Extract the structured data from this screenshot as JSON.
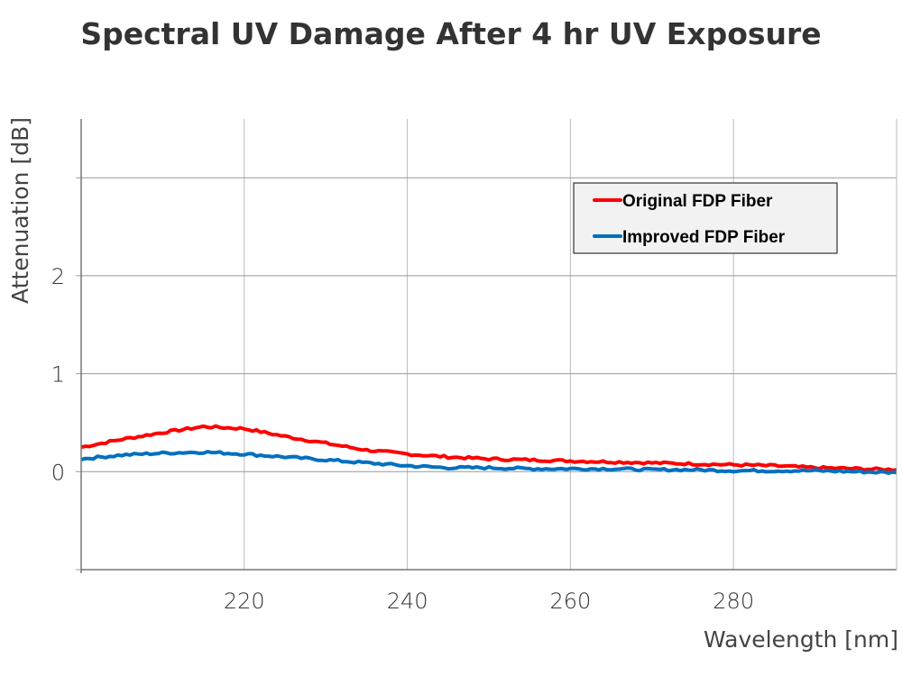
{
  "chart_data": {
    "type": "line",
    "title": "Spectral UV Damage After 4 hr UV Exposure",
    "xlabel": "Wavelength [nm]",
    "ylabel": "Attenuation [dB]",
    "xlim": [
      200,
      300
    ],
    "ylim": [
      -1,
      3.6
    ],
    "xticks": [
      220,
      240,
      260,
      280
    ],
    "xtick_labels": [
      "220",
      "240",
      "260",
      "280"
    ],
    "ygrid": [
      -1,
      0,
      1,
      2,
      3
    ],
    "yticks": [
      0,
      1,
      2
    ],
    "ytick_labels": [
      "0",
      "1",
      "2"
    ],
    "grid": true,
    "legend_position": "top-right",
    "x": [
      200,
      205,
      210,
      215,
      220,
      225,
      230,
      235,
      240,
      245,
      250,
      255,
      260,
      265,
      270,
      275,
      280,
      285,
      290,
      295,
      300
    ],
    "series": [
      {
        "name": "Original FDP Fiber",
        "color": "#ff0000",
        "values": [
          0.25,
          0.33,
          0.4,
          0.46,
          0.44,
          0.36,
          0.29,
          0.22,
          0.18,
          0.15,
          0.13,
          0.12,
          0.11,
          0.1,
          0.09,
          0.08,
          0.07,
          0.06,
          0.04,
          0.03,
          0.02
        ]
      },
      {
        "name": "Improved FDP Fiber",
        "color": "#0070c0",
        "values": [
          0.13,
          0.17,
          0.19,
          0.2,
          0.18,
          0.15,
          0.12,
          0.09,
          0.06,
          0.04,
          0.04,
          0.03,
          0.03,
          0.03,
          0.02,
          0.02,
          0.01,
          0.01,
          0.01,
          0.0,
          -0.01
        ]
      }
    ]
  }
}
